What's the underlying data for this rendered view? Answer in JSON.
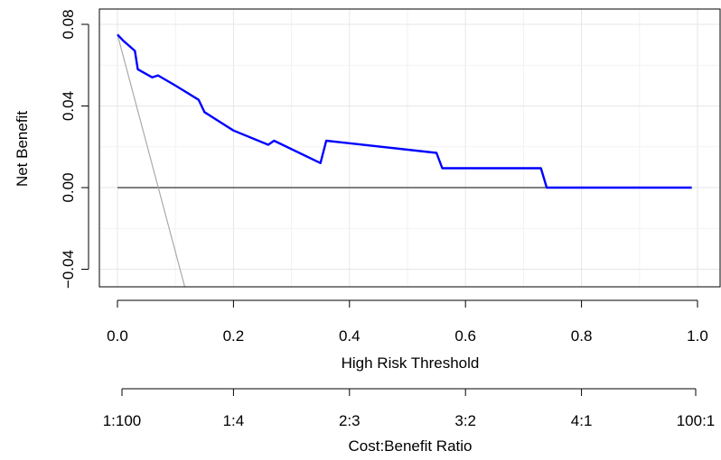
{
  "chart_data": {
    "type": "line",
    "title": "",
    "xlabel": "High Risk Threshold",
    "ylabel": "Net Benefit",
    "xlim": [
      0,
      1
    ],
    "ylim": [
      -0.055,
      0.085
    ],
    "x_ticks": [
      0.0,
      0.2,
      0.4,
      0.6,
      0.8,
      1.0
    ],
    "x_tick_labels": [
      "0.0",
      "0.2",
      "0.4",
      "0.6",
      "0.8",
      "1.0"
    ],
    "y_ticks": [
      -0.04,
      0.0,
      0.04,
      0.08
    ],
    "y_tick_labels": [
      "−0.04",
      "0.00",
      "0.04",
      "0.08"
    ],
    "grid": true,
    "legend": "none",
    "series": [
      {
        "color": "#0000ff",
        "x": [
          0.0,
          0.01,
          0.03,
          0.035,
          0.06,
          0.07,
          0.1,
          0.14,
          0.15,
          0.2,
          0.26,
          0.27,
          0.35,
          0.36,
          0.55,
          0.56,
          0.73,
          0.74,
          0.99
        ],
        "y": [
          0.075,
          0.072,
          0.067,
          0.058,
          0.054,
          0.055,
          0.05,
          0.043,
          0.037,
          0.028,
          0.021,
          0.023,
          0.012,
          0.023,
          0.017,
          0.0095,
          0.0095,
          0.0,
          0.0
        ]
      },
      {
        "color": "#aaaaaa",
        "x": [
          0.0,
          0.122
        ],
        "y": [
          0.075,
          -0.055
        ]
      },
      {
        "color": "#555555",
        "x": [
          0.0,
          0.99
        ],
        "y": [
          0.0,
          0.0
        ]
      }
    ],
    "secondary_axis": {
      "xlabel": "Cost:Benefit Ratio",
      "tick_positions": [
        0.0,
        0.2,
        0.4,
        0.6,
        0.8,
        1.0
      ],
      "tick_labels": [
        "1:100",
        "1:4",
        "2:3",
        "3:2",
        "4:1",
        "100:1"
      ]
    }
  }
}
